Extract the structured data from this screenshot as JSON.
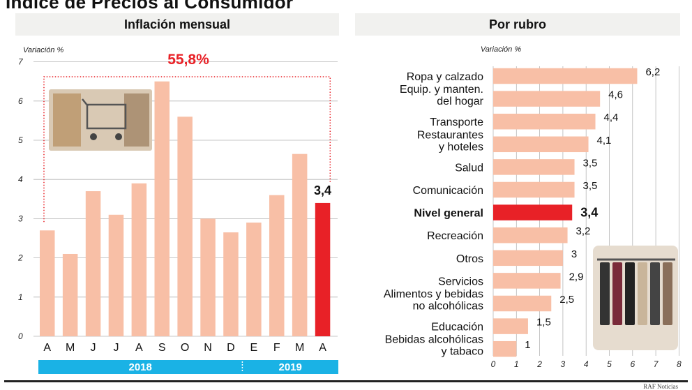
{
  "title": "Índice de Precios al Consumidor",
  "source": "RAF Noticias",
  "colors": {
    "bar": "#f8bfa6",
    "highlight": "#e82127",
    "year_band": "#1ab2e5",
    "header_bg": "#f1f1ef",
    "annotation": "#e82127"
  },
  "left": {
    "header": "Inflación mensual",
    "photo_icon": "shopping-cart-icon",
    "chart_data": {
      "type": "bar",
      "ylabel": "Variación %",
      "ylim": [
        0,
        7
      ],
      "yticks": [
        "0",
        "1",
        "2",
        "3",
        "4",
        "5",
        "6",
        "7"
      ],
      "categories": [
        "A",
        "M",
        "J",
        "J",
        "A",
        "S",
        "O",
        "N",
        "D",
        "E",
        "F",
        "M",
        "A"
      ],
      "values": [
        2.7,
        2.1,
        3.7,
        3.1,
        3.9,
        6.5,
        5.6,
        3.0,
        2.65,
        2.9,
        3.6,
        4.65,
        3.4
      ],
      "highlight_index": 12,
      "highlight_label": "3,4",
      "cumulative_label": "55,8%",
      "years": [
        {
          "label": "2018"
        },
        {
          "label": "2019"
        }
      ],
      "grid": true
    }
  },
  "right": {
    "header": "Por rubro",
    "photo_icon": "clothing-rack-icon",
    "chart_data": {
      "type": "bar",
      "orientation": "horizontal",
      "xlabel": "Variación %",
      "xlim": [
        0,
        8
      ],
      "xticks": [
        "0",
        "1",
        "2",
        "3",
        "4",
        "5",
        "6",
        "7",
        "8"
      ],
      "categories": [
        [
          "Ropa y calzado"
        ],
        [
          "Equip. y manten.",
          "del hogar"
        ],
        [
          "Transporte"
        ],
        [
          "Restaurantes",
          "y hoteles"
        ],
        [
          "Salud"
        ],
        [
          "Comunicación"
        ],
        [
          "Nivel general"
        ],
        [
          "Recreación"
        ],
        [
          "Otros"
        ],
        [
          "Servicios"
        ],
        [
          "Alimentos y bebidas",
          "no alcohólicas"
        ],
        [
          "Educación"
        ],
        [
          "Bebidas alcohólicas",
          "y tabaco"
        ]
      ],
      "values": [
        6.2,
        4.6,
        4.4,
        4.1,
        3.5,
        3.5,
        3.4,
        3.2,
        3.0,
        2.9,
        2.5,
        1.5,
        1.0
      ],
      "value_labels": [
        "6,2",
        "4,6",
        "4,4",
        "4,1",
        "3,5",
        "3,5",
        "3,4",
        "3,2",
        "3",
        "2,9",
        "2,5",
        "1,5",
        "1"
      ],
      "highlight_index": 6,
      "grid": true
    }
  }
}
